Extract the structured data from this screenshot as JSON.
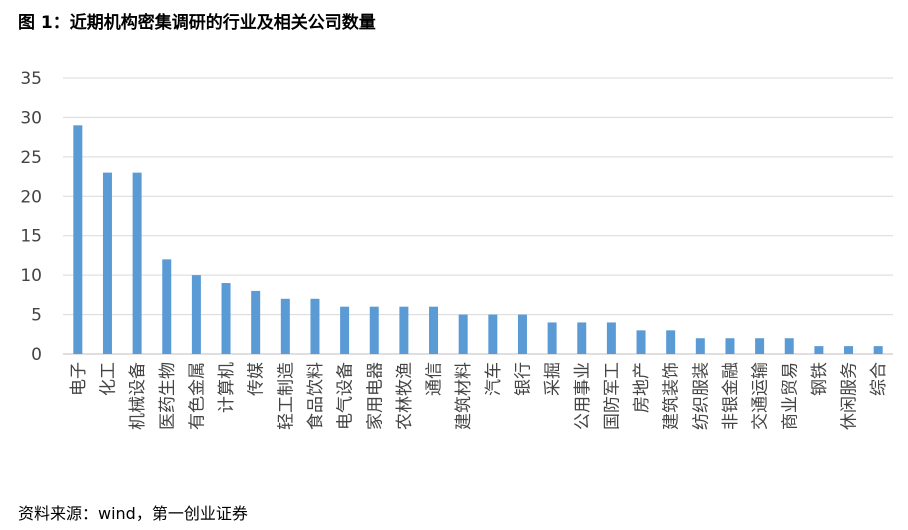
{
  "page": {
    "title": "图 1：近期机构密集调研的行业及相关公司数量",
    "source": "资料来源：wind，第一创业证券"
  },
  "chart_data": {
    "type": "bar",
    "title": "",
    "xlabel": "",
    "ylabel": "",
    "ylim": [
      0,
      35
    ],
    "yticks": [
      0,
      5,
      10,
      15,
      20,
      25,
      30,
      35
    ],
    "grid": true,
    "bar_color": "#5b9bd5",
    "categories": [
      "电子",
      "化工",
      "机械设备",
      "医药生物",
      "有色金属",
      "计算机",
      "传媒",
      "轻工制造",
      "食品饮料",
      "电气设备",
      "家用电器",
      "农林牧渔",
      "通信",
      "建筑材料",
      "汽车",
      "银行",
      "采掘",
      "公用事业",
      "国防军工",
      "房地产",
      "建筑装饰",
      "纺织服装",
      "非银金融",
      "交通运输",
      "商业贸易",
      "钢铁",
      "休闲服务",
      "综合"
    ],
    "values": [
      29,
      23,
      23,
      12,
      10,
      9,
      8,
      7,
      7,
      6,
      6,
      6,
      6,
      5,
      5,
      5,
      4,
      4,
      4,
      3,
      3,
      2,
      2,
      2,
      2,
      1,
      1,
      1
    ]
  }
}
